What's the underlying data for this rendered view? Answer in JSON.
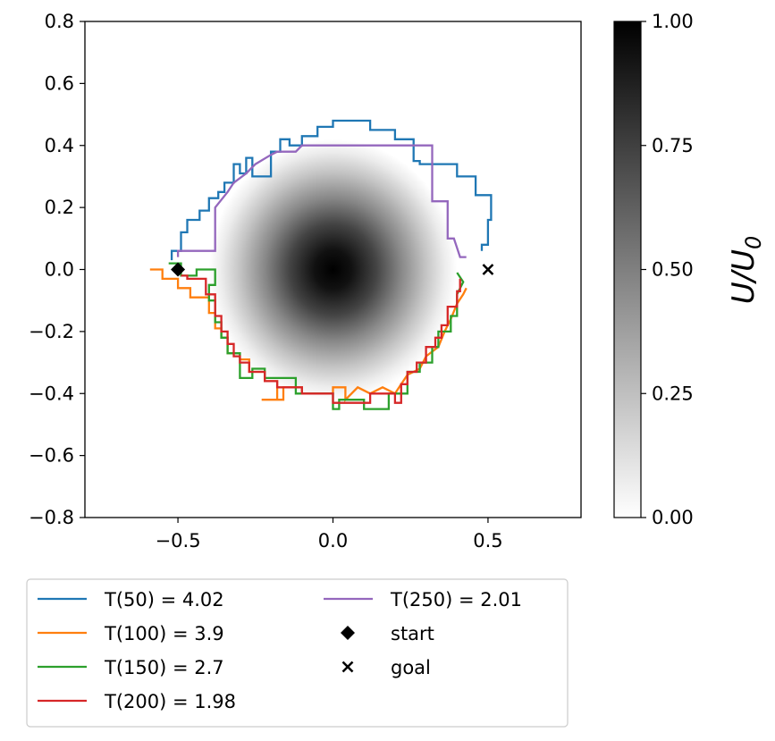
{
  "chart_data": {
    "type": "line",
    "x_ticks": [
      "−0.5",
      "0.0",
      "0.5"
    ],
    "x_tick_values": [
      -0.5,
      0.0,
      0.5
    ],
    "y_ticks": [
      "−0.8",
      "−0.6",
      "−0.4",
      "−0.2",
      "0.0",
      "0.2",
      "0.4",
      "0.6",
      "0.8"
    ],
    "y_tick_values": [
      -0.8,
      -0.6,
      -0.4,
      -0.2,
      0.0,
      0.2,
      0.4,
      0.6,
      0.8
    ],
    "xlim": [
      -0.8,
      0.8
    ],
    "ylim": [
      -0.8,
      0.8
    ],
    "colorbar": {
      "label_main": "U/U",
      "label_sub": "0",
      "range": [
        0,
        1
      ],
      "ticks": [
        "0.00",
        "0.25",
        "0.50",
        "0.75",
        "1.00"
      ],
      "tick_values": [
        0.0,
        0.25,
        0.5,
        0.75,
        1.0
      ],
      "colormap": "gray_r"
    },
    "heatmap": {
      "description_value": "Gaussian bump centered at (0,0)",
      "center": [
        0,
        0
      ],
      "sigma_x": 0.12,
      "sigma_y": 0.16,
      "extent": [
        -0.4,
        0.4,
        -0.42,
        0.42
      ]
    },
    "legend_placement": "bottom-left, below plot",
    "series": [
      {
        "name": "T(50) = 4.02",
        "color": "#1f77b4",
        "points": [
          [
            -0.52,
            0.03
          ],
          [
            -0.52,
            0.06
          ],
          [
            -0.49,
            0.06
          ],
          [
            -0.49,
            0.12
          ],
          [
            -0.47,
            0.12
          ],
          [
            -0.47,
            0.16
          ],
          [
            -0.43,
            0.16
          ],
          [
            -0.43,
            0.19
          ],
          [
            -0.4,
            0.19
          ],
          [
            -0.4,
            0.23
          ],
          [
            -0.37,
            0.23
          ],
          [
            -0.37,
            0.25
          ],
          [
            -0.35,
            0.25
          ],
          [
            -0.35,
            0.28
          ],
          [
            -0.32,
            0.28
          ],
          [
            -0.32,
            0.34
          ],
          [
            -0.3,
            0.34
          ],
          [
            -0.3,
            0.31
          ],
          [
            -0.28,
            0.31
          ],
          [
            -0.28,
            0.36
          ],
          [
            -0.26,
            0.36
          ],
          [
            -0.26,
            0.3
          ],
          [
            -0.2,
            0.3
          ],
          [
            -0.2,
            0.38
          ],
          [
            -0.17,
            0.38
          ],
          [
            -0.17,
            0.42
          ],
          [
            -0.14,
            0.42
          ],
          [
            -0.14,
            0.4
          ],
          [
            -0.1,
            0.4
          ],
          [
            -0.1,
            0.43
          ],
          [
            -0.05,
            0.43
          ],
          [
            -0.05,
            0.46
          ],
          [
            0.0,
            0.46
          ],
          [
            0.0,
            0.48
          ],
          [
            0.12,
            0.48
          ],
          [
            0.12,
            0.45
          ],
          [
            0.2,
            0.45
          ],
          [
            0.2,
            0.42
          ],
          [
            0.26,
            0.42
          ],
          [
            0.26,
            0.35
          ],
          [
            0.28,
            0.35
          ],
          [
            0.28,
            0.34
          ],
          [
            0.4,
            0.34
          ],
          [
            0.4,
            0.3
          ],
          [
            0.46,
            0.3
          ],
          [
            0.46,
            0.24
          ],
          [
            0.51,
            0.24
          ],
          [
            0.51,
            0.16
          ],
          [
            0.5,
            0.16
          ],
          [
            0.5,
            0.08
          ],
          [
            0.48,
            0.08
          ],
          [
            0.48,
            0.06
          ]
        ]
      },
      {
        "name": "T(100) = 3.9",
        "color": "#ff7f0e",
        "points": [
          [
            -0.59,
            0.0
          ],
          [
            -0.55,
            0.0
          ],
          [
            -0.55,
            -0.03
          ],
          [
            -0.5,
            -0.03
          ],
          [
            -0.5,
            -0.06
          ],
          [
            -0.46,
            -0.06
          ],
          [
            -0.46,
            -0.09
          ],
          [
            -0.4,
            -0.09
          ],
          [
            -0.4,
            -0.14
          ],
          [
            -0.38,
            -0.14
          ],
          [
            -0.38,
            -0.19
          ],
          [
            -0.36,
            -0.19
          ],
          [
            -0.36,
            -0.22
          ],
          [
            -0.34,
            -0.22
          ],
          [
            -0.34,
            -0.27
          ],
          [
            -0.3,
            -0.27
          ],
          [
            -0.3,
            -0.29
          ],
          [
            -0.27,
            -0.29
          ],
          [
            -0.27,
            -0.33
          ],
          [
            -0.22,
            -0.33
          ],
          [
            -0.22,
            -0.36
          ],
          [
            -0.18,
            -0.36
          ],
          [
            -0.18,
            -0.42
          ],
          [
            -0.23,
            -0.42
          ],
          [
            -0.2,
            -0.42
          ],
          [
            -0.16,
            -0.42
          ],
          [
            -0.16,
            -0.38
          ],
          [
            -0.1,
            -0.38
          ],
          [
            -0.1,
            -0.4
          ],
          [
            0.0,
            -0.4
          ],
          [
            0.0,
            -0.38
          ],
          [
            0.04,
            -0.38
          ],
          [
            0.04,
            -0.42
          ],
          [
            0.08,
            -0.38
          ],
          [
            0.12,
            -0.4
          ],
          [
            0.16,
            -0.38
          ],
          [
            0.2,
            -0.4
          ],
          [
            0.22,
            -0.37
          ],
          [
            0.24,
            -0.34
          ],
          [
            0.28,
            -0.32
          ],
          [
            0.3,
            -0.28
          ],
          [
            0.34,
            -0.25
          ],
          [
            0.36,
            -0.2
          ],
          [
            0.38,
            -0.16
          ],
          [
            0.4,
            -0.11
          ],
          [
            0.42,
            -0.08
          ],
          [
            0.43,
            -0.06
          ]
        ]
      },
      {
        "name": "T(150) = 2.7",
        "color": "#2ca02c",
        "points": [
          [
            -0.53,
            0.02
          ],
          [
            -0.49,
            0.02
          ],
          [
            -0.49,
            -0.02
          ],
          [
            -0.44,
            -0.02
          ],
          [
            -0.44,
            0.0
          ],
          [
            -0.38,
            0.0
          ],
          [
            -0.38,
            -0.05
          ],
          [
            -0.4,
            -0.05
          ],
          [
            -0.4,
            -0.1
          ],
          [
            -0.38,
            -0.1
          ],
          [
            -0.38,
            -0.17
          ],
          [
            -0.36,
            -0.17
          ],
          [
            -0.36,
            -0.22
          ],
          [
            -0.34,
            -0.22
          ],
          [
            -0.34,
            -0.27
          ],
          [
            -0.3,
            -0.27
          ],
          [
            -0.3,
            -0.35
          ],
          [
            -0.26,
            -0.35
          ],
          [
            -0.26,
            -0.32
          ],
          [
            -0.22,
            -0.32
          ],
          [
            -0.22,
            -0.35
          ],
          [
            -0.12,
            -0.35
          ],
          [
            -0.12,
            -0.4
          ],
          [
            0.0,
            -0.4
          ],
          [
            0.0,
            -0.45
          ],
          [
            0.02,
            -0.45
          ],
          [
            0.02,
            -0.42
          ],
          [
            0.1,
            -0.42
          ],
          [
            0.1,
            -0.45
          ],
          [
            0.18,
            -0.45
          ],
          [
            0.18,
            -0.4
          ],
          [
            0.24,
            -0.4
          ],
          [
            0.24,
            -0.33
          ],
          [
            0.28,
            -0.33
          ],
          [
            0.28,
            -0.3
          ],
          [
            0.32,
            -0.3
          ],
          [
            0.32,
            -0.25
          ],
          [
            0.34,
            -0.25
          ],
          [
            0.34,
            -0.2
          ],
          [
            0.38,
            -0.2
          ],
          [
            0.38,
            -0.15
          ],
          [
            0.4,
            -0.15
          ],
          [
            0.4,
            -0.08
          ],
          [
            0.42,
            -0.04
          ],
          [
            0.4,
            -0.01
          ]
        ]
      },
      {
        "name": "T(200) = 1.98",
        "color": "#d62728",
        "points": [
          [
            -0.49,
            -0.02
          ],
          [
            -0.47,
            -0.02
          ],
          [
            -0.47,
            -0.03
          ],
          [
            -0.41,
            -0.03
          ],
          [
            -0.41,
            -0.08
          ],
          [
            -0.38,
            -0.08
          ],
          [
            -0.38,
            -0.15
          ],
          [
            -0.36,
            -0.15
          ],
          [
            -0.36,
            -0.2
          ],
          [
            -0.34,
            -0.2
          ],
          [
            -0.34,
            -0.24
          ],
          [
            -0.32,
            -0.24
          ],
          [
            -0.32,
            -0.28
          ],
          [
            -0.3,
            -0.28
          ],
          [
            -0.3,
            -0.3
          ],
          [
            -0.27,
            -0.3
          ],
          [
            -0.27,
            -0.33
          ],
          [
            -0.22,
            -0.33
          ],
          [
            -0.22,
            -0.36
          ],
          [
            -0.18,
            -0.36
          ],
          [
            -0.18,
            -0.38
          ],
          [
            -0.1,
            -0.38
          ],
          [
            -0.1,
            -0.4
          ],
          [
            0.0,
            -0.4
          ],
          [
            0.0,
            -0.43
          ],
          [
            0.12,
            -0.43
          ],
          [
            0.12,
            -0.4
          ],
          [
            0.2,
            -0.4
          ],
          [
            0.2,
            -0.43
          ],
          [
            0.22,
            -0.43
          ],
          [
            0.22,
            -0.37
          ],
          [
            0.24,
            -0.37
          ],
          [
            0.24,
            -0.33
          ],
          [
            0.27,
            -0.33
          ],
          [
            0.27,
            -0.3
          ],
          [
            0.3,
            -0.3
          ],
          [
            0.3,
            -0.25
          ],
          [
            0.33,
            -0.25
          ],
          [
            0.33,
            -0.22
          ],
          [
            0.35,
            -0.22
          ],
          [
            0.35,
            -0.18
          ],
          [
            0.37,
            -0.18
          ],
          [
            0.37,
            -0.12
          ],
          [
            0.4,
            -0.12
          ],
          [
            0.4,
            -0.07
          ],
          [
            0.41,
            -0.07
          ],
          [
            0.41,
            -0.03
          ]
        ]
      },
      {
        "name": "T(250) = 2.01",
        "color": "#9467bd",
        "points": [
          [
            -0.5,
            0.04
          ],
          [
            -0.5,
            0.06
          ],
          [
            -0.43,
            0.06
          ],
          [
            -0.38,
            0.06
          ],
          [
            -0.38,
            0.2
          ],
          [
            -0.34,
            0.25
          ],
          [
            -0.32,
            0.28
          ],
          [
            -0.28,
            0.31
          ],
          [
            -0.25,
            0.34
          ],
          [
            -0.2,
            0.37
          ],
          [
            -0.18,
            0.38
          ],
          [
            -0.12,
            0.38
          ],
          [
            -0.1,
            0.4
          ],
          [
            0.0,
            0.4
          ],
          [
            0.32,
            0.4
          ],
          [
            0.32,
            0.22
          ],
          [
            0.37,
            0.22
          ],
          [
            0.37,
            0.1
          ],
          [
            0.39,
            0.1
          ],
          [
            0.41,
            0.04
          ],
          [
            0.43,
            0.04
          ]
        ]
      }
    ],
    "markers": [
      {
        "name": "start",
        "symbol": "diamond",
        "x": -0.5,
        "y": 0.0,
        "color": "#000000"
      },
      {
        "name": "goal",
        "symbol": "x",
        "x": 0.5,
        "y": 0.0,
        "color": "#000000"
      }
    ]
  }
}
